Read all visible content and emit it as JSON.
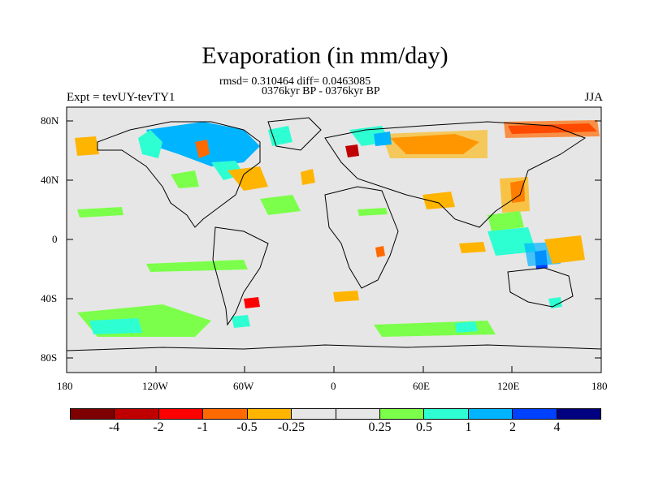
{
  "title": "Evaporation (in mm/day)",
  "stats": "rmsd= 0.310464 diff= 0.0463085",
  "period": "0376kyr BP - 0376kyr BP",
  "expt": "Expt = tevUY-tevTY1",
  "season": "JJA",
  "map": {
    "background_color": "#e6e6e6",
    "lat_ticks": [
      "80N",
      "40N",
      "0",
      "40S",
      "80S"
    ],
    "lon_ticks": [
      "180",
      "120W",
      "60W",
      "0",
      "60E",
      "120E",
      "180"
    ]
  },
  "colorbar": {
    "colors": [
      "#7f0000",
      "#c00000",
      "#ff0000",
      "#ff6a00",
      "#ffb400",
      "#e6e6e6",
      "#e6e6e6",
      "#7cff4a",
      "#2effd2",
      "#00b4ff",
      "#0040ff",
      "#000080"
    ],
    "labels": [
      "-4",
      "-2",
      "-1",
      "-0.5",
      "-0.25",
      "0.25",
      "0.5",
      "1",
      "2",
      "4"
    ]
  },
  "anomaly_colors": {
    "green": "#7cff4a",
    "cyan": "#2effd2",
    "blue": "#00b4ff",
    "dark_blue": "#0040ff",
    "yellow": "#ffb400",
    "orange": "#ff6a00",
    "red": "#ff0000",
    "dark_red": "#c00000"
  }
}
